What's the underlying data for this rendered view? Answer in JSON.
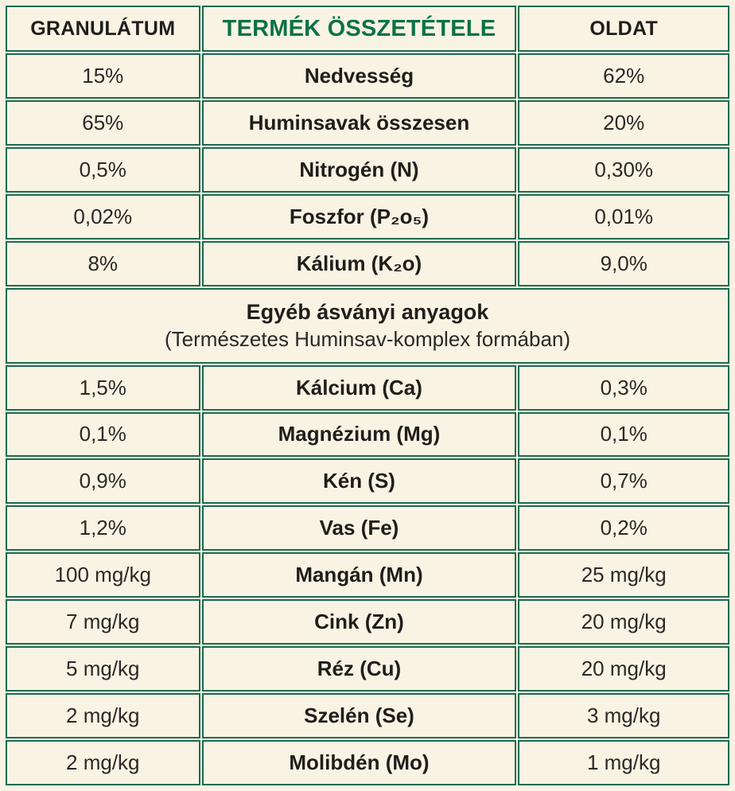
{
  "colors": {
    "bg": "#f9f3e4",
    "border": "#1e6b4d",
    "accent": "#0c7147",
    "text": "#1f1e1b"
  },
  "chart_data": {
    "type": "table",
    "title": "TERMÉK ÖSSZETÉTELE",
    "columns": [
      "GRANULÁTUM",
      "TERMÉK ÖSSZETÉTELE",
      "OLDAT"
    ],
    "section_break": {
      "title": "Egyéb ásványi anyagok",
      "subtitle": "(Természetes Huminsav-komplex formában)"
    },
    "rows": [
      {
        "granulatum": "15%",
        "component": "Nedvesség",
        "oldat": "62%"
      },
      {
        "granulatum": "65%",
        "component": "Huminsavak összesen",
        "oldat": "20%"
      },
      {
        "granulatum": "0,5%",
        "component": "Nitrogén (N)",
        "oldat": "0,30%"
      },
      {
        "granulatum": "0,02%",
        "component": "Foszfor (P₂o₅)",
        "oldat": "0,01%"
      },
      {
        "granulatum": "8%",
        "component": "Kálium (K₂o)",
        "oldat": "9,0%"
      },
      {
        "section": true,
        "title": "Egyéb ásványi anyagok",
        "subtitle": "(Természetes Huminsav-komplex formában)"
      },
      {
        "granulatum": "1,5%",
        "component": "Kálcium (Ca)",
        "oldat": "0,3%"
      },
      {
        "granulatum": "0,1%",
        "component": "Magnézium (Mg)",
        "oldat": "0,1%"
      },
      {
        "granulatum": "0,9%",
        "component": "Kén (S)",
        "oldat": "0,7%"
      },
      {
        "granulatum": "1,2%",
        "component": "Vas (Fe)",
        "oldat": "0,2%"
      },
      {
        "granulatum": "100 mg/kg",
        "component": "Mangán (Mn)",
        "oldat": "25 mg/kg"
      },
      {
        "granulatum": "7 mg/kg",
        "component": "Cink (Zn)",
        "oldat": "20 mg/kg"
      },
      {
        "granulatum": "5 mg/kg",
        "component": "Réz (Cu)",
        "oldat": "20 mg/kg"
      },
      {
        "granulatum": "2 mg/kg",
        "component": "Szelén (Se)",
        "oldat": "3 mg/kg"
      },
      {
        "granulatum": "2 mg/kg",
        "component": "Molibdén (Mo)",
        "oldat": "1 mg/kg"
      }
    ]
  }
}
